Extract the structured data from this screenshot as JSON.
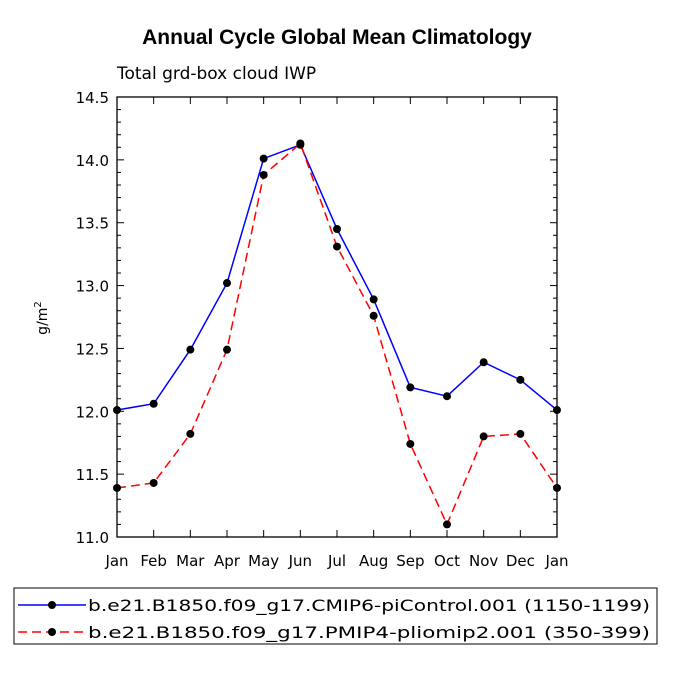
{
  "chart_data": {
    "type": "line",
    "title": "Annual Cycle Global Mean Climatology",
    "subtitle": "Total grd-box cloud IWP",
    "ylabel": "g/m",
    "ylabel_superscript": "2",
    "xlabel": "",
    "ylim": [
      11.0,
      14.5
    ],
    "yticks": [
      "11.0",
      "11.5",
      "12.0",
      "12.5",
      "13.0",
      "13.5",
      "14.0",
      "14.5"
    ],
    "categories": [
      "Jan",
      "Feb",
      "Mar",
      "Apr",
      "May",
      "Jun",
      "Jul",
      "Aug",
      "Sep",
      "Oct",
      "Nov",
      "Dec",
      "Jan"
    ],
    "series": [
      {
        "name": "b.e21.B1850.f09_g17.CMIP6-piControl.001 (1150-1199)",
        "color": "#0000ff",
        "dash": "solid",
        "values": [
          12.01,
          12.06,
          12.49,
          13.02,
          14.01,
          14.12,
          13.45,
          12.89,
          12.19,
          12.12,
          12.39,
          12.25,
          12.01
        ]
      },
      {
        "name": "b.e21.B1850.f09_g17.PMIP4-pliomip2.001 (350-399)",
        "color": "#ff0000",
        "dash": "dashed",
        "values": [
          11.39,
          11.43,
          11.82,
          12.49,
          13.88,
          14.13,
          13.31,
          12.76,
          11.74,
          11.1,
          11.8,
          11.82,
          11.39
        ]
      }
    ]
  }
}
